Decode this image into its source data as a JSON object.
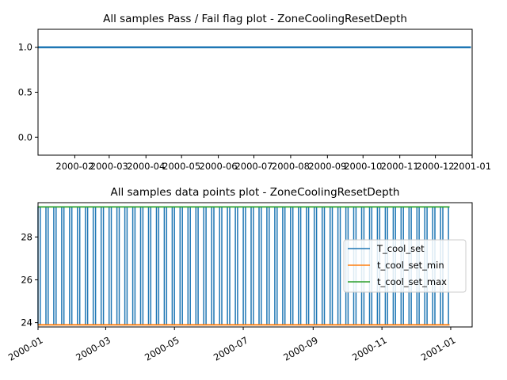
{
  "colors": {
    "T_cool_set": "#1f77b4",
    "t_cool_set_min": "#ff7f0e",
    "t_cool_set_max": "#2ca02c"
  },
  "chart_data": [
    {
      "type": "line",
      "title": "All samples Pass / Fail flag plot - ZoneCoolingResetDepth",
      "xlabel": "",
      "ylabel": "",
      "xlim": [
        "2000-01-01",
        "2001-01-01"
      ],
      "ylim": [
        -0.2,
        1.2
      ],
      "x_ticks": [
        "2000-02",
        "2000-03",
        "2000-04",
        "2000-05",
        "2000-06",
        "2000-07",
        "2000-08",
        "2000-09",
        "2000-10",
        "2000-11",
        "2000-12",
        "2001-01"
      ],
      "y_ticks": [
        "0.0",
        "0.5",
        "1.0"
      ],
      "series": [
        {
          "x": [
            "2000-01-01",
            "2000-12-31"
          ],
          "values": [
            1.0,
            1.0
          ],
          "color": "#1f77b4"
        }
      ],
      "grid": false
    },
    {
      "type": "line",
      "title": "All samples data points plot - ZoneCoolingResetDepth",
      "xlabel": "",
      "ylabel": "",
      "xlim": [
        "2000-01-01",
        "2001-01-20"
      ],
      "ylim": [
        23.8,
        29.6
      ],
      "x_ticks": [
        "2000-01",
        "2000-03",
        "2000-05",
        "2000-07",
        "2000-09",
        "2000-11",
        "2001-01"
      ],
      "y_ticks": [
        "24",
        "26",
        "28"
      ],
      "legend_position": "center-right",
      "grid": false,
      "series": [
        {
          "name": "T_cool_set",
          "low": 23.9,
          "high": 29.4,
          "x_range": [
            "2000-01-01",
            "2000-12-31"
          ],
          "pattern": "alternating between 23.9 and 29.4"
        },
        {
          "name": "t_cool_set_min",
          "values": [
            23.9,
            23.9
          ],
          "x": [
            "2000-01-01",
            "2000-12-31"
          ]
        },
        {
          "name": "t_cool_set_max",
          "values": [
            29.4,
            29.4
          ],
          "x": [
            "2000-01-01",
            "2000-12-31"
          ]
        }
      ]
    }
  ]
}
